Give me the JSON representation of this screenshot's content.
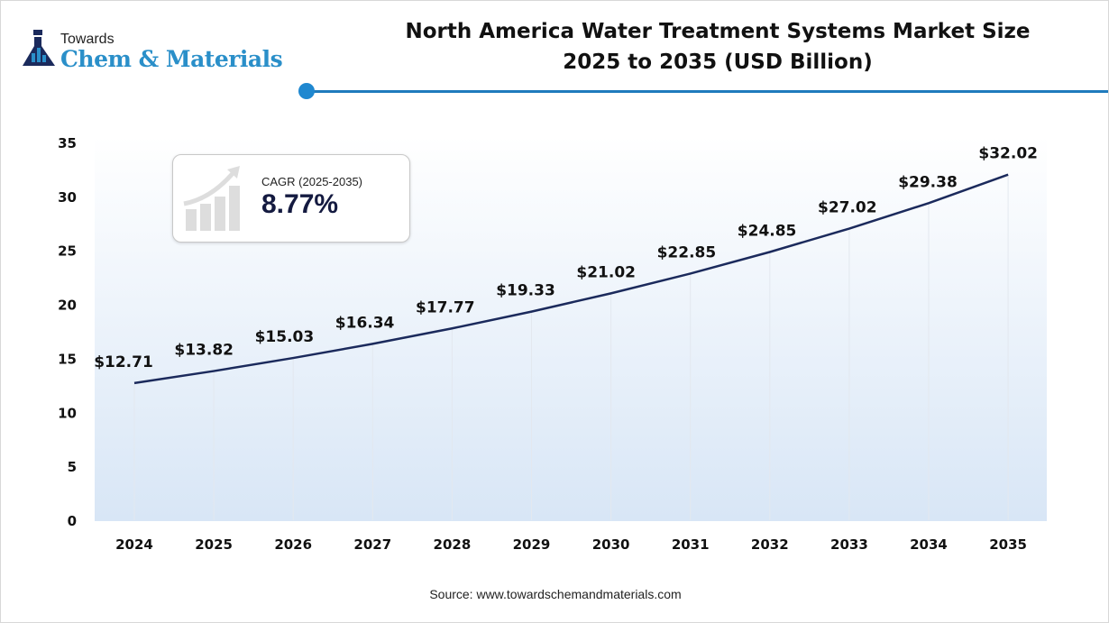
{
  "logo": {
    "line1": "Towards",
    "line2": "Chem & Materials"
  },
  "title_lines": [
    "North America Water Treatment Systems Market Size",
    "2025 to 2035 (USD Billion)"
  ],
  "cagr": {
    "label": "CAGR (2025-2035)",
    "value": "8.77%"
  },
  "source": "Source: www.towardschemandmaterials.com",
  "colors": {
    "line": "#1b2a5c",
    "accent": "#1f7bbd",
    "area_fill": "#dde9f7"
  },
  "chart_data": {
    "type": "line",
    "categories": [
      "2024",
      "2025",
      "2026",
      "2027",
      "2028",
      "2029",
      "2030",
      "2031",
      "2032",
      "2033",
      "2034",
      "2035"
    ],
    "values": [
      12.71,
      13.82,
      15.03,
      16.34,
      17.77,
      19.33,
      21.02,
      22.85,
      24.85,
      27.02,
      29.38,
      32.02
    ],
    "data_labels": [
      "$12.71",
      "$13.82",
      "$15.03",
      "$16.34",
      "$17.77",
      "$19.33",
      "$21.02",
      "$22.85",
      "$24.85",
      "$27.02",
      "$29.38",
      "$32.02"
    ],
    "ylim": [
      0,
      35
    ],
    "yticks": [
      "0",
      "5",
      "10",
      "15",
      "20",
      "25",
      "30",
      "35"
    ],
    "grid": "vertical lines at categories",
    "legend": "none"
  }
}
